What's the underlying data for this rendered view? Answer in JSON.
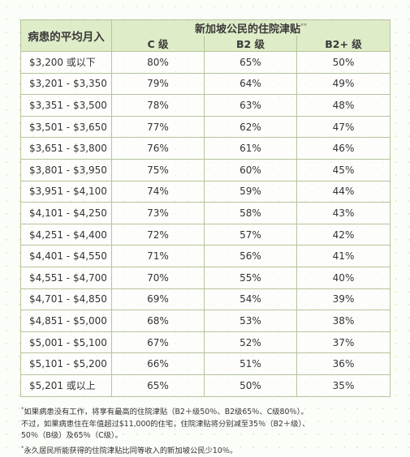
{
  "table": {
    "header": {
      "income_label": "病患的平均月入",
      "group_title": "新加坡公民的住院津贴",
      "group_title_mark": "**",
      "columns": [
        "C 级",
        "B2 级",
        "B2+ 级"
      ]
    },
    "rows": [
      {
        "income": "$3,200 或以下",
        "c": "80%",
        "b2": "65%",
        "b2plus": "50%"
      },
      {
        "income": "$3,201 - $3,350",
        "c": "79%",
        "b2": "64%",
        "b2plus": "49%"
      },
      {
        "income": "$3,351 - $3,500",
        "c": "78%",
        "b2": "63%",
        "b2plus": "48%"
      },
      {
        "income": "$3,501 - $3,650",
        "c": "77%",
        "b2": "62%",
        "b2plus": "47%"
      },
      {
        "income": "$3,651 - $3,800",
        "c": "76%",
        "b2": "61%",
        "b2plus": "46%"
      },
      {
        "income": "$3,801 - $3,950",
        "c": "75%",
        "b2": "60%",
        "b2plus": "45%"
      },
      {
        "income": "$3,951 - $4,100",
        "c": "74%",
        "b2": "59%",
        "b2plus": "44%"
      },
      {
        "income": "$4,101 - $4,250",
        "c": "73%",
        "b2": "58%",
        "b2plus": "43%"
      },
      {
        "income": "$4,251 - $4,400",
        "c": "72%",
        "b2": "57%",
        "b2plus": "42%"
      },
      {
        "income": "$4,401 - $4,550",
        "c": "71%",
        "b2": "56%",
        "b2plus": "41%"
      },
      {
        "income": "$4,551 - $4,700",
        "c": "70%",
        "b2": "55%",
        "b2plus": "40%"
      },
      {
        "income": "$4,701 - $4,850",
        "c": "69%",
        "b2": "54%",
        "b2plus": "39%"
      },
      {
        "income": "$4,851 - $5,000",
        "c": "68%",
        "b2": "53%",
        "b2plus": "38%"
      },
      {
        "income": "$5,001 - $5,100",
        "c": "67%",
        "b2": "52%",
        "b2plus": "37%"
      },
      {
        "income": "$5,101 - $5,200",
        "c": "66%",
        "b2": "51%",
        "b2plus": "36%"
      },
      {
        "income": "$5,201 或以上",
        "c": "65%",
        "b2": "50%",
        "b2plus": "35%"
      }
    ]
  },
  "notes": {
    "note1_mark": "*",
    "note1_line1": "如果病患没有工作，将享有最高的住院津贴（B2＋级50％、B2级65％、C级80％）。",
    "note1_line2": "不过，如果病患住在年值超过$11,000的住宅，住院津贴将分别减至35％（B2＋级）、",
    "note1_line3": "50％（B级）及65％（C级）。",
    "note2_mark": "*",
    "note2_text": "永久居民所能获得的住院津贴比同等收入的新加坡公民少10％。"
  }
}
